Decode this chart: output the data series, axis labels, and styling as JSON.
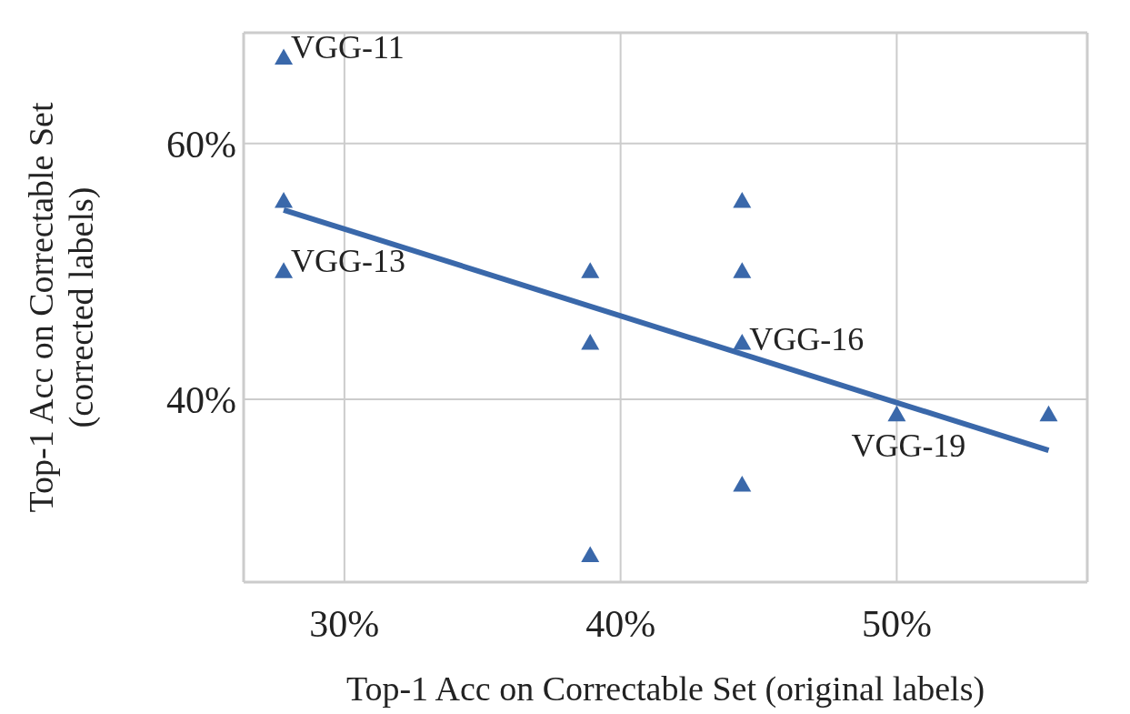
{
  "chart_data": {
    "type": "scatter",
    "xlabel": "Top-1 Acc on Correctable Set (original labels)",
    "ylabel": "Top-1 Acc on Correctable Set\n(corrected labels)",
    "xlim": [
      26.35,
      56.9
    ],
    "ylim": [
      25.7,
      68.65
    ],
    "xticks": [
      {
        "value": 30,
        "label": "30%"
      },
      {
        "value": 40,
        "label": "40%"
      },
      {
        "value": 50,
        "label": "50%"
      }
    ],
    "yticks": [
      {
        "value": 40,
        "label": "40%"
      },
      {
        "value": 60,
        "label": "60%"
      }
    ],
    "grid": true,
    "marker": "triangle",
    "series": [
      {
        "color": "#3a68aa",
        "x": [
          27.8,
          27.8,
          27.8,
          38.9,
          38.9,
          38.9,
          44.4,
          44.4,
          44.4,
          44.4,
          50,
          55.5
        ],
        "values": [
          66.7,
          55.5,
          50,
          50,
          44.4,
          27.8,
          55.5,
          50,
          44.4,
          33.3,
          38.8,
          38.8
        ]
      },
      {
        "type": "line",
        "color": "#3a68aa",
        "marker": "none",
        "x": [
          27.8,
          55.5
        ],
        "values": [
          54.8,
          36.0
        ]
      }
    ],
    "annotations": [
      {
        "text": "VGG-11",
        "x": 27.8,
        "y": 66.7
      },
      {
        "text": "VGG-13",
        "x": 27.8,
        "y": 50
      },
      {
        "text": "VGG-16",
        "x": 44.4,
        "y": 44.4
      },
      {
        "text": "VGG-19",
        "x": 50,
        "y": 38.8
      }
    ]
  }
}
